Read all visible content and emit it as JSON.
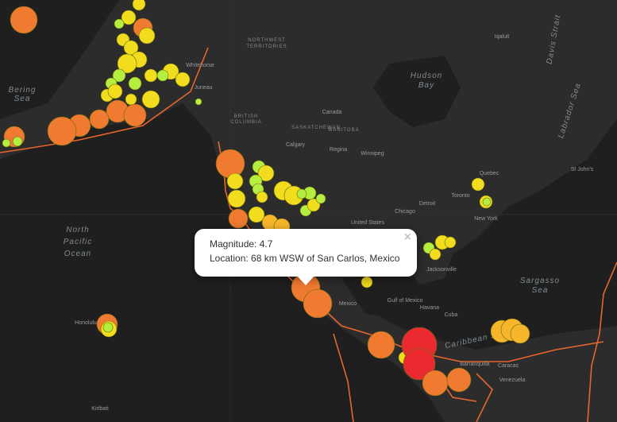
{
  "map": {
    "labels": [
      "Bering",
      "Sea",
      "North",
      "Pacific",
      "Ocean",
      "Hudson",
      "Bay",
      "Labrador Sea",
      "Davis Strait",
      "Sargasso",
      "Sea",
      "Caribbean Sea",
      "NORTHWEST",
      "TERRITORIES",
      "Canada",
      "BRITISH",
      "COLUMBIA",
      "SASKATCHEWAN",
      "MANITOBA",
      "Whitehorse",
      "Juneau",
      "Calgary",
      "Regina",
      "Winnipeg",
      "United States",
      "Chicago",
      "Detroit",
      "Toronto",
      "New York",
      "Quebec",
      "St John's",
      "Iqaluit",
      "Jacksonville",
      "Havana",
      "Cuba",
      "Mexico",
      "Gulf of Mexico",
      "Honolulu",
      "Barranquilla",
      "Caracas",
      "Venezuela",
      "Kiribati"
    ]
  },
  "popup": {
    "magnitude": "Magnitude: 4.7",
    "location": "Location: 68 km WSW of San Carlos, Mexico",
    "close": "×"
  }
}
